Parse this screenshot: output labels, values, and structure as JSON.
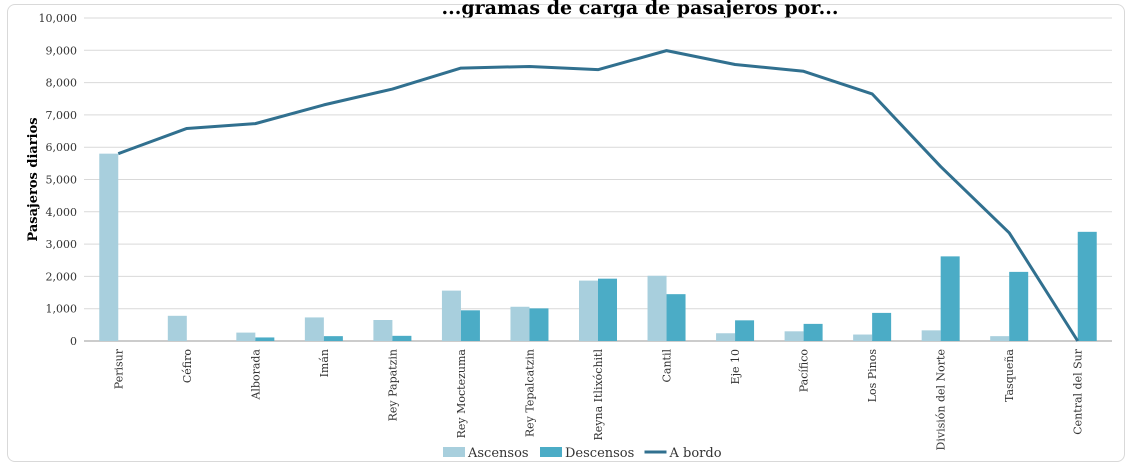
{
  "chart_data": {
    "type": "bar",
    "title": "...gramas de carga de pasajeros por...",
    "xlabel": "",
    "ylabel": "Pasajeros diarios",
    "ylim": [
      0,
      10000
    ],
    "yticks": [
      "0",
      "1,000",
      "2,000",
      "3,000",
      "4,000",
      "5,000",
      "6,000",
      "7,000",
      "8,000",
      "9,000",
      "10,000"
    ],
    "categories": [
      "Perisur",
      "Céfiro",
      "Alborada",
      "Imán",
      "Rey Papatzin",
      "Rey Moctezuma",
      "Rey Tepalcatzin",
      "Reyna Itlixóchitl",
      "Cantil",
      "Eje 10",
      "Pacífico",
      "Los Pinos",
      "División del Norte",
      "Tasqueña",
      "Central del Sur"
    ],
    "series": [
      {
        "name": "Ascensos",
        "type": "bar",
        "color": "#a8cfdd",
        "values": [
          5800,
          780,
          260,
          730,
          650,
          1560,
          1060,
          1870,
          2020,
          240,
          300,
          200,
          330,
          150,
          0
        ]
      },
      {
        "name": "Descensos",
        "type": "bar",
        "color": "#4bacc6",
        "values": [
          0,
          0,
          110,
          150,
          160,
          950,
          1010,
          1930,
          1450,
          640,
          530,
          870,
          2620,
          2140,
          3380
        ]
      },
      {
        "name": "A bordo",
        "type": "line",
        "color": "#31708f",
        "values": [
          5800,
          6580,
          6730,
          7310,
          7800,
          8450,
          8500,
          8400,
          8990,
          8560,
          8350,
          7650,
          5400,
          3350,
          0
        ]
      }
    ],
    "legend": "bottom",
    "grid": true
  }
}
